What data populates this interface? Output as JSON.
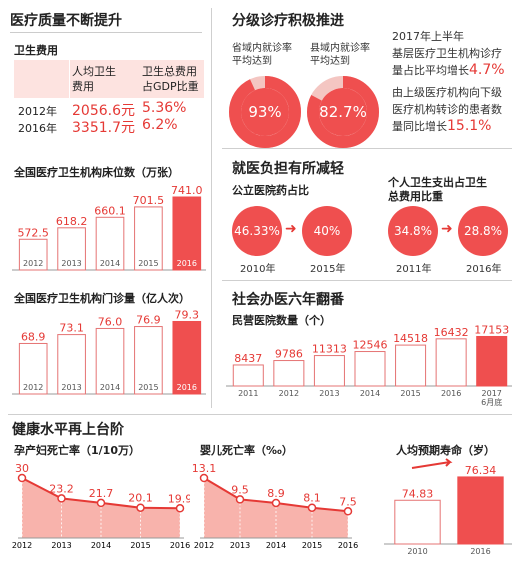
{
  "quality": {
    "title": "医疗质量不断提升",
    "fees": {
      "title": "卫生费用",
      "col1": "人均卫生费用",
      "col1_l1": "人均卫生",
      "col1_l2": "费用",
      "col2_l1": "卫生总费用",
      "col2_l2": "占GDP比重",
      "rows": [
        {
          "year": "2012年",
          "per_capita": "2056.6元",
          "gdp_share": "5.36%"
        },
        {
          "year": "2016年",
          "per_capita": "3351.7元",
          "gdp_share": "6.2%"
        }
      ]
    }
  },
  "charts": {
    "beds": {
      "title": "全国医疗卫生机构床位数（万张）",
      "chart_data": {
        "type": "bar",
        "categories": [
          "2012",
          "2013",
          "2014",
          "2015",
          "2016"
        ],
        "values": [
          572.5,
          618.2,
          660.1,
          701.5,
          741.0
        ],
        "value_labels": [
          "572.5",
          "618.2",
          "660.1",
          "701.5",
          "741.0"
        ],
        "highlight": "2016",
        "unit": "万张"
      }
    },
    "visits": {
      "title": "全国医疗卫生机构门诊量（亿人次）",
      "chart_data": {
        "type": "bar",
        "categories": [
          "2012",
          "2013",
          "2014",
          "2015",
          "2016"
        ],
        "values": [
          68.9,
          73.1,
          76.0,
          76.9,
          79.3
        ],
        "value_labels": [
          "68.9",
          "73.1",
          "76.0",
          "76.9",
          "79.3"
        ],
        "highlight": "2016",
        "unit": "亿人次"
      }
    },
    "private_hospitals": {
      "title": "民营医院数量（个）",
      "chart_data": {
        "type": "bar",
        "categories": [
          "2011",
          "2012",
          "2013",
          "2014",
          "2015",
          "2016",
          "2017 6月底"
        ],
        "tick_lines": [
          [
            "2011"
          ],
          [
            "2012"
          ],
          [
            "2013"
          ],
          [
            "2014"
          ],
          [
            "2015"
          ],
          [
            "2016"
          ],
          [
            "2017",
            "6月底"
          ]
        ],
        "values": [
          8437,
          9786,
          11313,
          12546,
          14518,
          16432,
          17153
        ],
        "value_labels": [
          "8437",
          "9786",
          "11313",
          "12546",
          "14518",
          "16432",
          "17153"
        ],
        "highlight": "2017 6月底",
        "unit": "个"
      }
    },
    "maternal": {
      "title": "孕产妇死亡率（1/10万）",
      "chart_data": {
        "type": "area",
        "x": [
          "2012",
          "2013",
          "2014",
          "2015",
          "2016"
        ],
        "values": [
          30,
          23.2,
          21.7,
          20.1,
          19.9
        ],
        "value_labels": [
          "30",
          "23.2",
          "21.7",
          "20.1",
          "19.9"
        ],
        "unit": "1/10万"
      }
    },
    "infant": {
      "title": "婴儿死亡率（‰）",
      "chart_data": {
        "type": "area",
        "x": [
          "2012",
          "2013",
          "2014",
          "2015",
          "2016"
        ],
        "values": [
          13.1,
          9.5,
          8.9,
          8.1,
          7.5
        ],
        "value_labels": [
          "13.1",
          "9.5",
          "8.9",
          "8.1",
          "7.5"
        ],
        "unit": "‰"
      }
    },
    "life": {
      "title": "人均预期寿命（岁）",
      "chart_data": {
        "type": "bar",
        "categories": [
          "2010",
          "2016"
        ],
        "values": [
          74.83,
          76.34
        ],
        "value_labels": [
          "74.83",
          "76.34"
        ],
        "highlight": "2016",
        "unit": "岁"
      }
    }
  },
  "tiered": {
    "title": "分级诊疗积极推进",
    "pie1_label_l1": "省域内就诊率",
    "pie1_label_l2": "平均达到",
    "pie1_value": "93%",
    "pie1_fraction": 0.93,
    "pie2_label_l1": "县域内就诊率",
    "pie2_label_l2": "平均达到",
    "pie2_value": "82.7%",
    "pie2_fraction": 0.827,
    "note1_l1": "2017年上半年",
    "note1_l2": "基层医疗卫生机构诊疗",
    "note1_l3": "量占比平均增长",
    "note1_value": "4.7%",
    "note2_l1": "由上级医疗机构向下级",
    "note2_l2": "医疗机构转诊的患者数",
    "note2_l3": "量同比增长",
    "note2_value": "15.1%"
  },
  "burden": {
    "title": "就医负担有所减轻",
    "drug_title": "公立医院药占比",
    "drug_values": [
      "46.33%",
      "40%"
    ],
    "drug_years": [
      "2010年",
      "2015年"
    ],
    "self_title_l1": "个人卫生支出占卫生",
    "self_title_l2": "总费用比重",
    "self_values": [
      "34.8%",
      "28.8%"
    ],
    "self_years": [
      "2011年",
      "2016年"
    ]
  },
  "social": {
    "title": "社会办医六年翻番"
  },
  "health": {
    "title": "健康水平再上台阶"
  },
  "colors": {
    "accent": "#e53935",
    "bar_fill": "#ef4f4f",
    "bar_outline": "#e57373",
    "area_fill": "#f6a097",
    "divider": "#cfcfcf"
  }
}
